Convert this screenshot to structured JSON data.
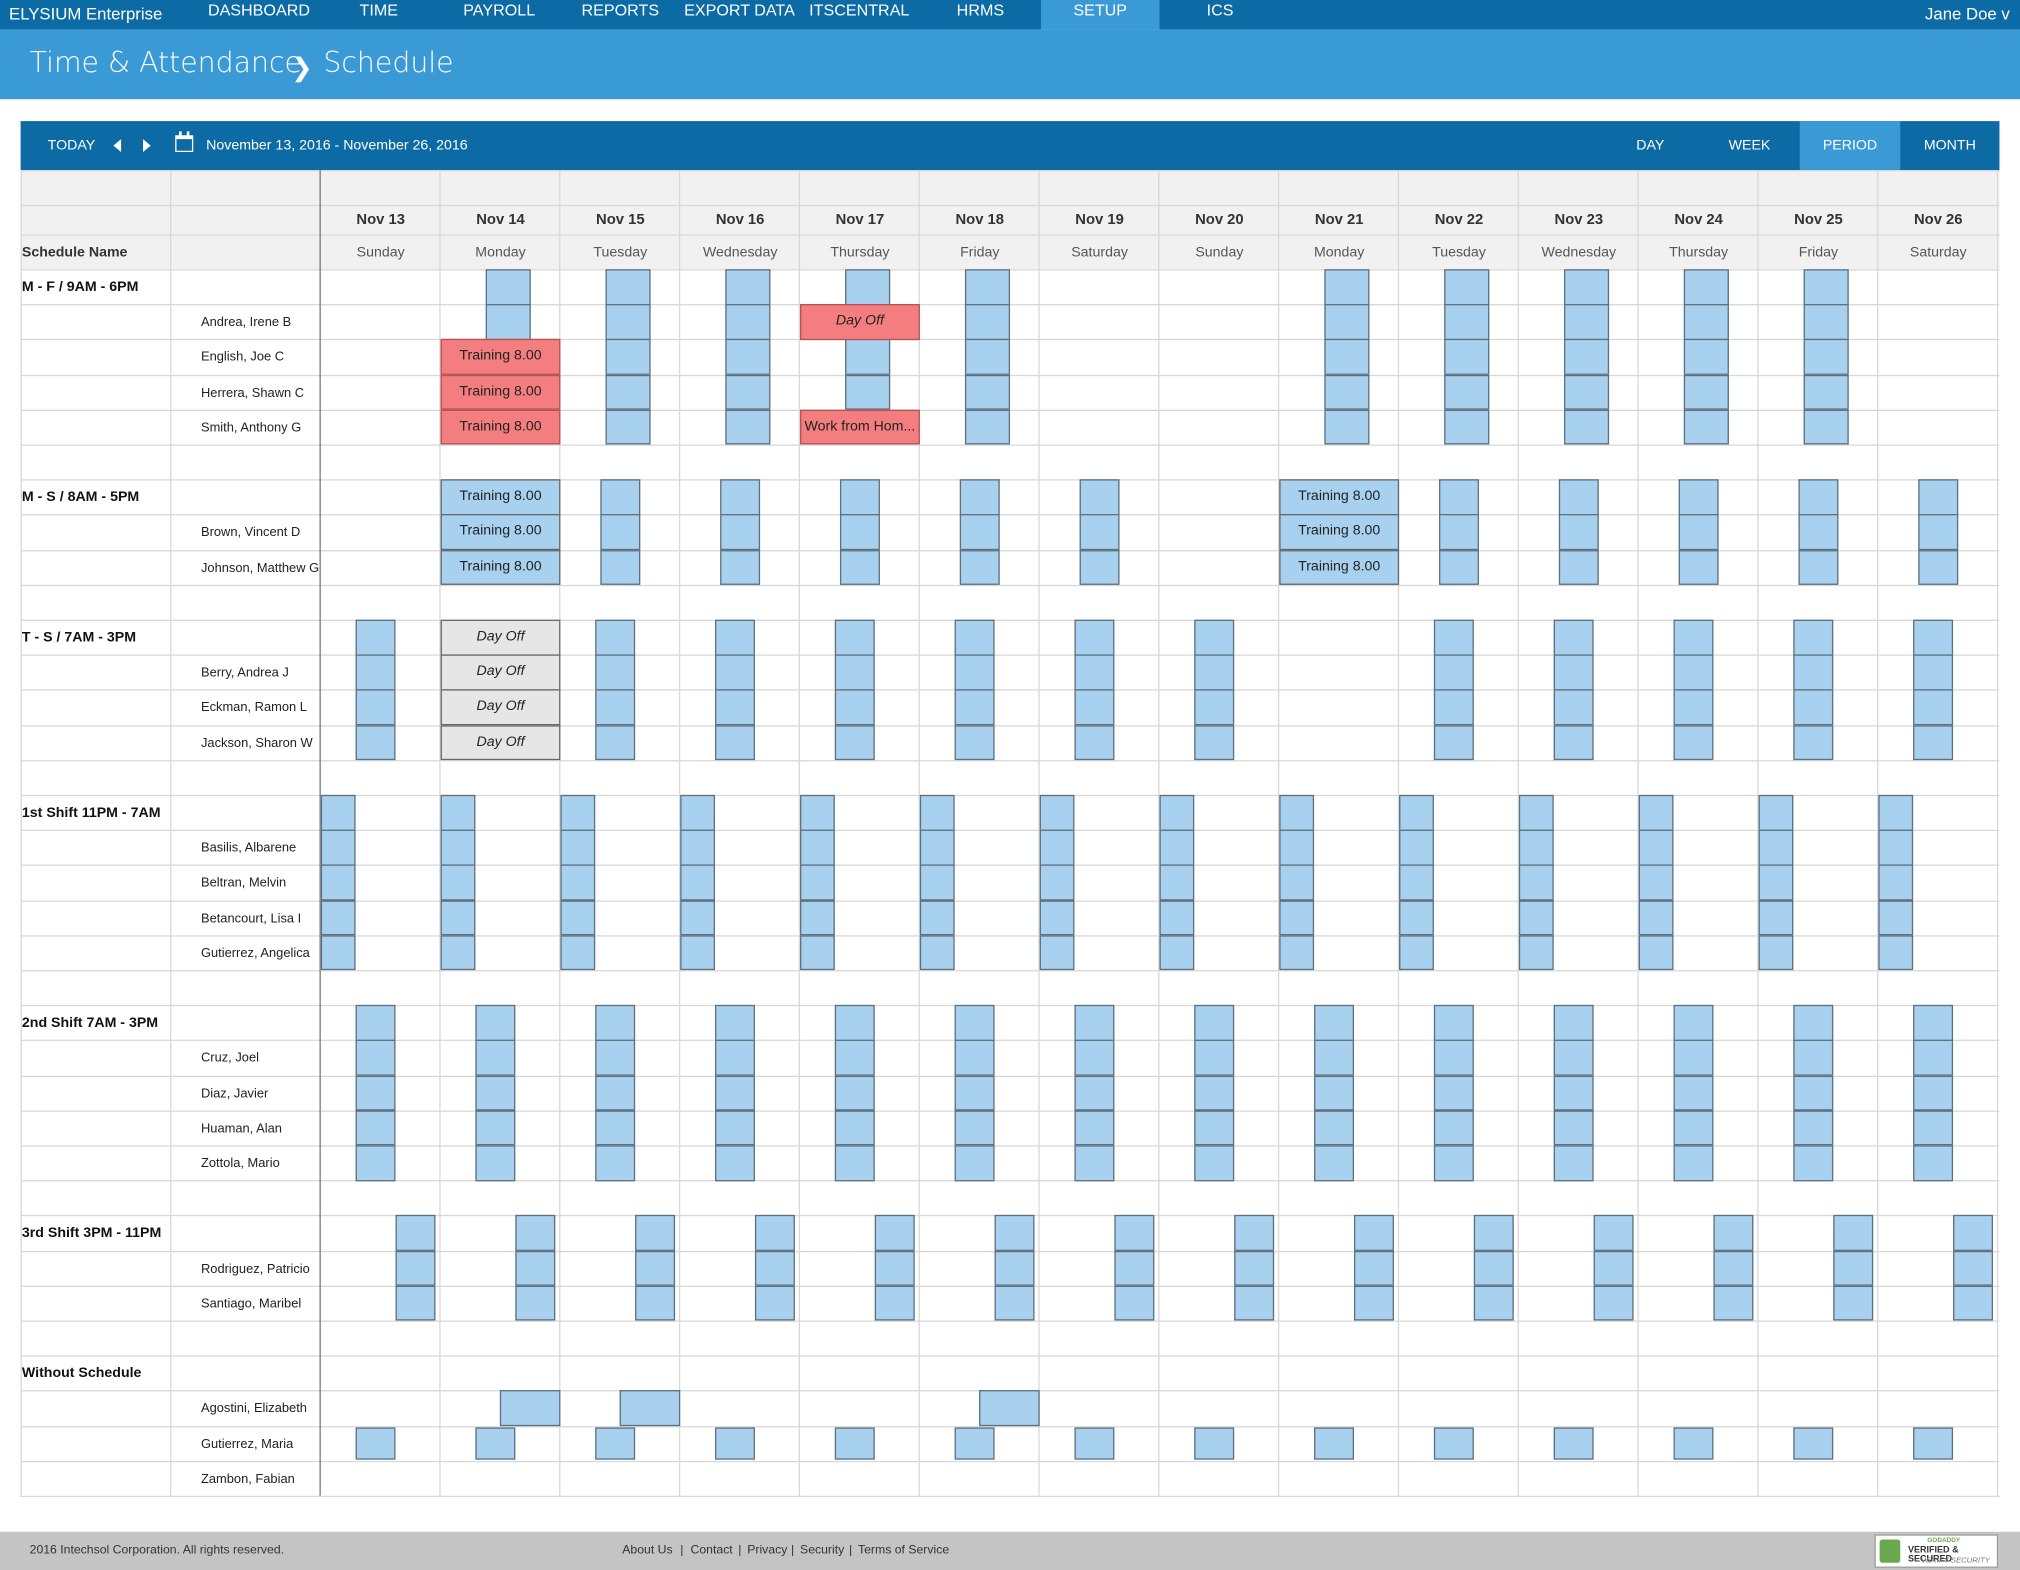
{
  "app": {
    "brand": "ELYSIUM Enterprise",
    "user": "Jane Doe v"
  },
  "nav": [
    {
      "label": "DASHBOARD"
    },
    {
      "label": "TIME"
    },
    {
      "label": "PAYROLL"
    },
    {
      "label": "REPORTS"
    },
    {
      "label": "EXPORT DATA"
    },
    {
      "label": "ITSCENTRAL"
    },
    {
      "label": "HRMS"
    },
    {
      "label": "SETUP",
      "active": true
    },
    {
      "label": "ICS"
    }
  ],
  "breadcrumb": {
    "section": "Time & Attendance",
    "page": "Schedule"
  },
  "toolbar": {
    "today": "TODAY",
    "date_range": "November 13, 2016 - November 26, 2016",
    "views": [
      {
        "label": "DAY"
      },
      {
        "label": "WEEK"
      },
      {
        "label": "PERIOD",
        "active": true
      },
      {
        "label": "MONTH"
      }
    ]
  },
  "colors": {
    "nav": "#0c6ba5",
    "title": "#3a9ad6",
    "shift": "#a7d1ef",
    "event_red": "#f47d7f",
    "event_grey": "#e6e6e6"
  },
  "grid": {
    "schedule_name_header": "Schedule Name",
    "days": [
      {
        "date": "Nov 13",
        "weekday": "Sunday"
      },
      {
        "date": "Nov 14",
        "weekday": "Monday"
      },
      {
        "date": "Nov 15",
        "weekday": "Tuesday"
      },
      {
        "date": "Nov 16",
        "weekday": "Wednesday"
      },
      {
        "date": "Nov 17",
        "weekday": "Thursday"
      },
      {
        "date": "Nov 18",
        "weekday": "Friday"
      },
      {
        "date": "Nov 19",
        "weekday": "Saturday"
      },
      {
        "date": "Nov 20",
        "weekday": "Sunday"
      },
      {
        "date": "Nov 21",
        "weekday": "Monday"
      },
      {
        "date": "Nov 22",
        "weekday": "Tuesday"
      },
      {
        "date": "Nov 23",
        "weekday": "Wednesday"
      },
      {
        "date": "Nov 24",
        "weekday": "Thursday"
      },
      {
        "date": "Nov 25",
        "weekday": "Friday"
      },
      {
        "date": "Nov 26",
        "weekday": "Saturday"
      }
    ],
    "groups": [
      {
        "name": "M - F / 9AM - 6PM",
        "members": [
          "Andrea, Irene B",
          "English, Joe C",
          "Herrera, Shawn C",
          "Smith, Anthony G"
        ]
      },
      {
        "name": "M - S / 8AM - 5PM",
        "members": [
          "Brown, Vincent D",
          "Johnson, Matthew G"
        ]
      },
      {
        "name": "T - S / 7AM - 3PM",
        "members": [
          "Berry, Andrea J",
          "Eckman, Ramon L",
          "Jackson, Sharon W"
        ]
      },
      {
        "name": "1st Shift 11PM - 7AM",
        "members": [
          "Basilis, Albarene",
          "Beltran, Melvin",
          "Betancourt, Lisa I",
          "Gutierrez, Angelica"
        ]
      },
      {
        "name": "2nd Shift 7AM - 3PM",
        "members": [
          "Cruz, Joel",
          "Diaz, Javier",
          "Huaman, Alan",
          "Zottola, Mario"
        ]
      },
      {
        "name": "3rd Shift 3PM - 11PM",
        "members": [
          "Rodriguez, Patricio",
          "Santiago, Maribel"
        ]
      },
      {
        "name": "Without Schedule",
        "members": [
          "Agostini, Elizabeth",
          "Gutierrez, Maria",
          "Zambon, Fabian"
        ]
      }
    ],
    "events": [
      {
        "label": "Day Off",
        "style": "red-italic",
        "group": 0,
        "member": 0,
        "day": 4
      },
      {
        "label": "Training 8.00",
        "style": "red",
        "group": 0,
        "member": 1,
        "day": 1
      },
      {
        "label": "Training 8.00",
        "style": "red",
        "group": 0,
        "member": 2,
        "day": 1
      },
      {
        "label": "Training 8.00",
        "style": "red",
        "group": 0,
        "member": 3,
        "day": 1
      },
      {
        "label": "Work from Hom...",
        "style": "red",
        "group": 0,
        "member": 3,
        "day": 4
      },
      {
        "label": "Training 8.00",
        "style": "blue",
        "group": 1,
        "member": -1,
        "day": 1
      },
      {
        "label": "Training 8.00",
        "style": "blue",
        "group": 1,
        "member": 0,
        "day": 1
      },
      {
        "label": "Training 8.00",
        "style": "blue",
        "group": 1,
        "member": 1,
        "day": 1
      },
      {
        "label": "Training 8.00",
        "style": "blue",
        "group": 1,
        "member": -1,
        "day": 8
      },
      {
        "label": "Training 8.00",
        "style": "blue",
        "group": 1,
        "member": 0,
        "day": 8
      },
      {
        "label": "Training 8.00",
        "style": "blue",
        "group": 1,
        "member": 1,
        "day": 8
      },
      {
        "label": "Day Off",
        "style": "grey",
        "group": 2,
        "member": -1,
        "day": 1
      },
      {
        "label": "Day Off",
        "style": "grey",
        "group": 2,
        "member": 0,
        "day": 1
      },
      {
        "label": "Day Off",
        "style": "grey",
        "group": 2,
        "member": 1,
        "day": 1
      },
      {
        "label": "Day Off",
        "style": "grey",
        "group": 2,
        "member": 2,
        "day": 1
      }
    ]
  },
  "footer": {
    "copyright": "2016 Intechsol Corporation. All rights reserved.",
    "links": [
      "About Us",
      "Contact",
      "Privacy",
      "Security",
      "Terms of Service"
    ],
    "badge": {
      "top": "GODADDY",
      "middle": "VERIFIED & SECURED",
      "bottom": "VERIFY SECURITY"
    }
  }
}
